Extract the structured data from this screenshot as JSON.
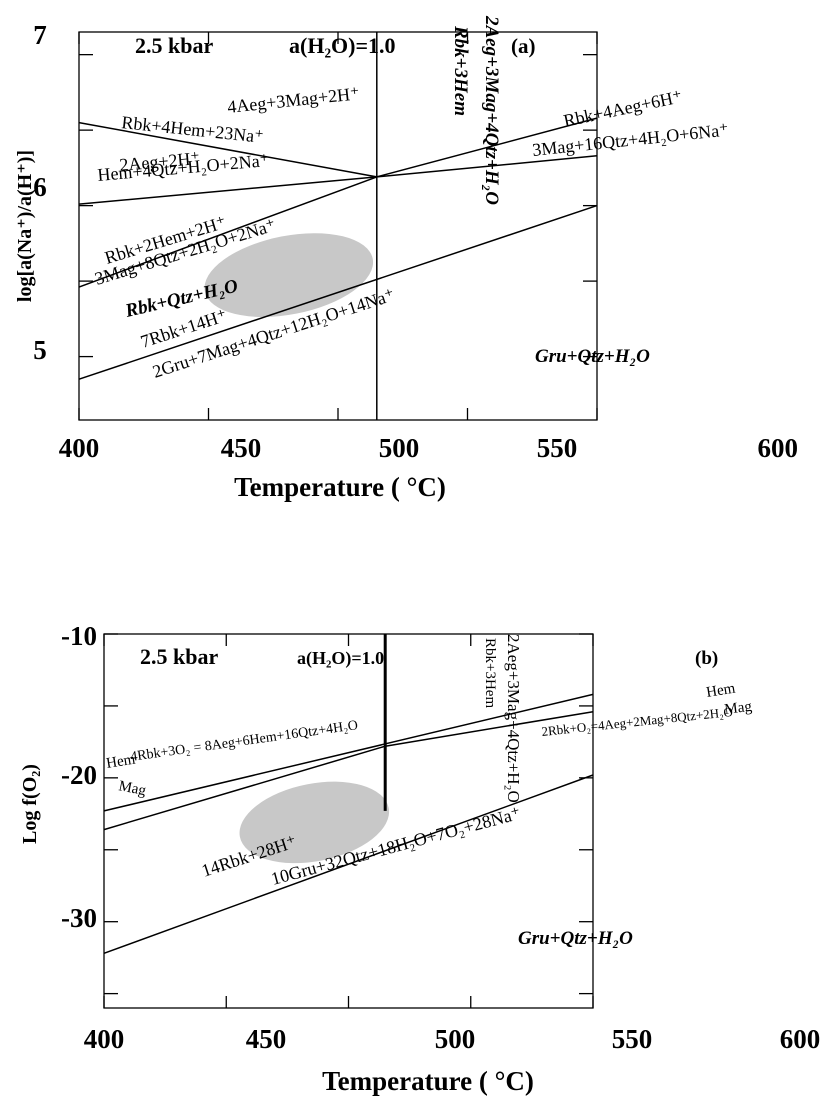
{
  "chart_data": [
    {
      "type": "line",
      "panel": "(a)",
      "xlabel": "Temperature ( °C)",
      "ylabel": "log[a(Na⁺)/a(H⁺)]",
      "xlim": [
        400,
        600
      ],
      "ylim": [
        4.58,
        7.15
      ],
      "x_ticks": [
        400,
        450,
        500,
        550,
        600
      ],
      "x_tick_labels": [
        "400",
        "450",
        "500",
        "550",
        "600"
      ],
      "y_ticks": [
        5,
        6,
        7
      ],
      "y_tick_labels": [
        "5",
        "6",
        "7"
      ],
      "minor_y_ticks": [
        5.5,
        6.5
      ],
      "grid": false,
      "conditions": [
        "2.5 kbar",
        "a(H₂O)=1.0"
      ],
      "series": [
        {
          "label_upper": "4Aeg+3Mag+2H⁺",
          "label_lower": "Rbk+4Hem+23Na⁺",
          "x": [
            400,
            515
          ],
          "y": [
            6.55,
            6.19
          ]
        },
        {
          "label_upper": "2Aeg+2H⁺",
          "label_lower": "Hem+4Qtz+H₂O+2Na⁺",
          "x": [
            400,
            515
          ],
          "y": [
            6.01,
            6.19
          ]
        },
        {
          "label_upper": "Rbk+2Hem+2H⁺",
          "label_lower": "3Mag+8Qtz+2H₂O+2Na⁺",
          "x": [
            400,
            515
          ],
          "y": [
            5.46,
            6.19
          ]
        },
        {
          "label_upper": "Rbk+4Aeg+6H⁺",
          "label_lower": "3Mag+16Qtz+4H₂O+6Na⁺",
          "x": [
            515,
            600
          ],
          "y": [
            6.19,
            6.58
          ]
        },
        {
          "label_upper": "",
          "label_lower": "",
          "x": [
            515,
            600
          ],
          "y": [
            6.19,
            6.33
          ]
        },
        {
          "label_upper": "7Rbk+14H⁺",
          "label_lower": "2Gru+7Mag+4Qtz+12H₂O+14Na⁺",
          "x": [
            400,
            600
          ],
          "y": [
            4.85,
            6.0
          ]
        },
        {
          "label_left": "Rbk+3Hem",
          "label_right": "2Aeg+3Mag+4Qtz+H₂O",
          "x": [
            515,
            515
          ],
          "y": [
            4.58,
            7.15
          ]
        }
      ],
      "fields": [
        "Rbk+Qtz+H₂O",
        "Gru+Qtz+H₂O"
      ],
      "shaded_region": {
        "center": [
          481,
          5.54
        ],
        "x_half_width": 33,
        "y_half_width": 0.26,
        "tilt": "rising",
        "color": "#c8c8c8"
      }
    },
    {
      "type": "line",
      "panel": "(b)",
      "xlabel": "Temperature ( °C)",
      "ylabel": "Log f(O₂)",
      "xlim": [
        400,
        600
      ],
      "ylim": [
        -36,
        -10
      ],
      "x_ticks": [
        400,
        450,
        500,
        550,
        600
      ],
      "x_tick_labels": [
        "400",
        "450",
        "500",
        "550",
        "600"
      ],
      "y_ticks": [
        -10,
        -20,
        -30
      ],
      "y_tick_labels": [
        "-10",
        "-20",
        "-30"
      ],
      "minor_y_ticks": [
        -15,
        -25,
        -35
      ],
      "grid": false,
      "conditions": [
        "2.5 kbar",
        "a(H₂O)=1.0"
      ],
      "series": [
        {
          "label_upper": "Hem",
          "label_lower": "Mag",
          "label_at": "both ends",
          "x": [
            400,
            600
          ],
          "y": [
            -22.3,
            -14.2
          ]
        },
        {
          "label": "4Rbk+3O₂ = 8Aeg+6Hem+16Qtz+4H₂O",
          "x": [
            400,
            515
          ],
          "y": [
            -23.6,
            -17.8
          ]
        },
        {
          "label": "2Rbk+O₂=4Aeg+2Mag+8Qtz+2H₂O",
          "x": [
            515,
            600
          ],
          "y": [
            -17.8,
            -15.4
          ]
        },
        {
          "label_upper": "14Rbk+28H⁺",
          "label_lower": "10Gru+32Qtz+18H₂O+7O₂+28Na⁺",
          "x": [
            400,
            600
          ],
          "y": [
            -32.2,
            -19.8
          ]
        },
        {
          "label_left": "Rbk+3Hem",
          "label_right": "2Aeg+3Mag+4Qtz+H₂O",
          "x": [
            515,
            515
          ],
          "y": [
            -22.3,
            -10
          ]
        }
      ],
      "fields": [
        "Gru+Qtz+H₂O"
      ],
      "shaded_region": {
        "center": [
          486,
          -23.1
        ],
        "x_half_width": 31,
        "y_half_width": 2.7,
        "tilt": "rising",
        "color": "#c8c8c8"
      }
    }
  ],
  "panel_a": {
    "tag": "(a)",
    "pressure": "2.5 kbar",
    "water": "a(H₂O)=1.0",
    "ylabel": "log[a(Na⁺)/a(H⁺)]",
    "xlabel": "Temperature ( °C)",
    "ticks_x": [
      "400",
      "450",
      "500",
      "550",
      "600"
    ],
    "ticks_y": [
      "7",
      "6",
      "5"
    ],
    "reactions": {
      "r1_top": "4Aeg+3Mag+2H⁺",
      "r1_bottom": "Rbk+4Hem+23Na⁺",
      "r2_top": "2Aeg+2H⁺",
      "r2_bottom": "Hem+4Qtz+H₂O+2Na⁺",
      "r3_top": "Rbk+2Hem+2H⁺",
      "r3_bottom": "3Mag+8Qtz+2H₂O+2Na⁺",
      "r4_top": "Rbk+4Aeg+6H⁺",
      "r4_bottom": "3Mag+16Qtz+4H₂O+6Na⁺",
      "r5_top": "7Rbk+14H⁺",
      "r5_bottom": "2Gru+7Mag+4Qtz+12H₂O+14Na⁺",
      "vert_left": "Rbk+3Hem",
      "vert_right": "2Aeg+3Mag+4Qtz+H₂O"
    },
    "field_rbk": "Rbk+Qtz+H₂O",
    "field_gru": "Gru+Qtz+H₂O"
  },
  "panel_b": {
    "tag": "(b)",
    "pressure": "2.5 kbar",
    "water": "a(H₂O)=1.0",
    "ylabel": "Log f(O₂)",
    "xlabel": "Temperature ( °C)",
    "ticks_x": [
      "400",
      "450",
      "500",
      "550",
      "600"
    ],
    "ticks_y": [
      "-10",
      "-20",
      "-30"
    ],
    "reactions": {
      "hem_left": "Hem",
      "mag_left": "Mag",
      "hem_right": "Hem",
      "mag_right": "Mag",
      "r_left": "4Rbk+3O₂ = 8Aeg+6Hem+16Qtz+4H₂O",
      "r_right": "2Rbk+O₂=4Aeg+2Mag+8Qtz+2H₂O",
      "r_low_top": "14Rbk+28H⁺",
      "r_low_bottom": "10Gru+32Qtz+18H₂O+7O₂+28Na⁺",
      "vert_left": "Rbk+3Hem",
      "vert_right": "2Aeg+3Mag+4Qtz+H₂O"
    },
    "field_gru": "Gru+Qtz+H₂O"
  }
}
